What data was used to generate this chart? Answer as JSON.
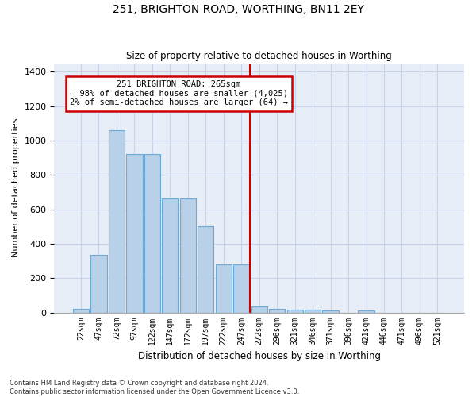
{
  "title": "251, BRIGHTON ROAD, WORTHING, BN11 2EY",
  "subtitle": "Size of property relative to detached houses in Worthing",
  "xlabel": "Distribution of detached houses by size in Worthing",
  "ylabel": "Number of detached properties",
  "categories": [
    "22sqm",
    "47sqm",
    "72sqm",
    "97sqm",
    "122sqm",
    "147sqm",
    "172sqm",
    "197sqm",
    "222sqm",
    "247sqm",
    "272sqm",
    "296sqm",
    "321sqm",
    "346sqm",
    "371sqm",
    "396sqm",
    "421sqm",
    "446sqm",
    "471sqm",
    "496sqm",
    "521sqm"
  ],
  "values": [
    20,
    335,
    1060,
    920,
    920,
    665,
    665,
    500,
    280,
    280,
    35,
    22,
    15,
    15,
    10,
    0,
    10,
    0,
    0,
    0,
    0
  ],
  "bar_color": "#b8d0e8",
  "bar_edge_color": "#6aaad4",
  "annotation_title": "251 BRIGHTON ROAD: 265sqm",
  "annotation_line1": "← 98% of detached houses are smaller (4,025)",
  "annotation_line2": "2% of semi-detached houses are larger (64) →",
  "vline_color": "#cc0000",
  "annotation_box_color": "#cc0000",
  "background_color": "#ffffff",
  "plot_bg_color": "#e8eef8",
  "grid_color": "#c8d4e8",
  "footer": "Contains HM Land Registry data © Crown copyright and database right 2024.\nContains public sector information licensed under the Open Government Licence v3.0.",
  "ylim": [
    0,
    1450
  ],
  "yticks": [
    0,
    200,
    400,
    600,
    800,
    1000,
    1200,
    1400
  ],
  "vline_index": 10
}
